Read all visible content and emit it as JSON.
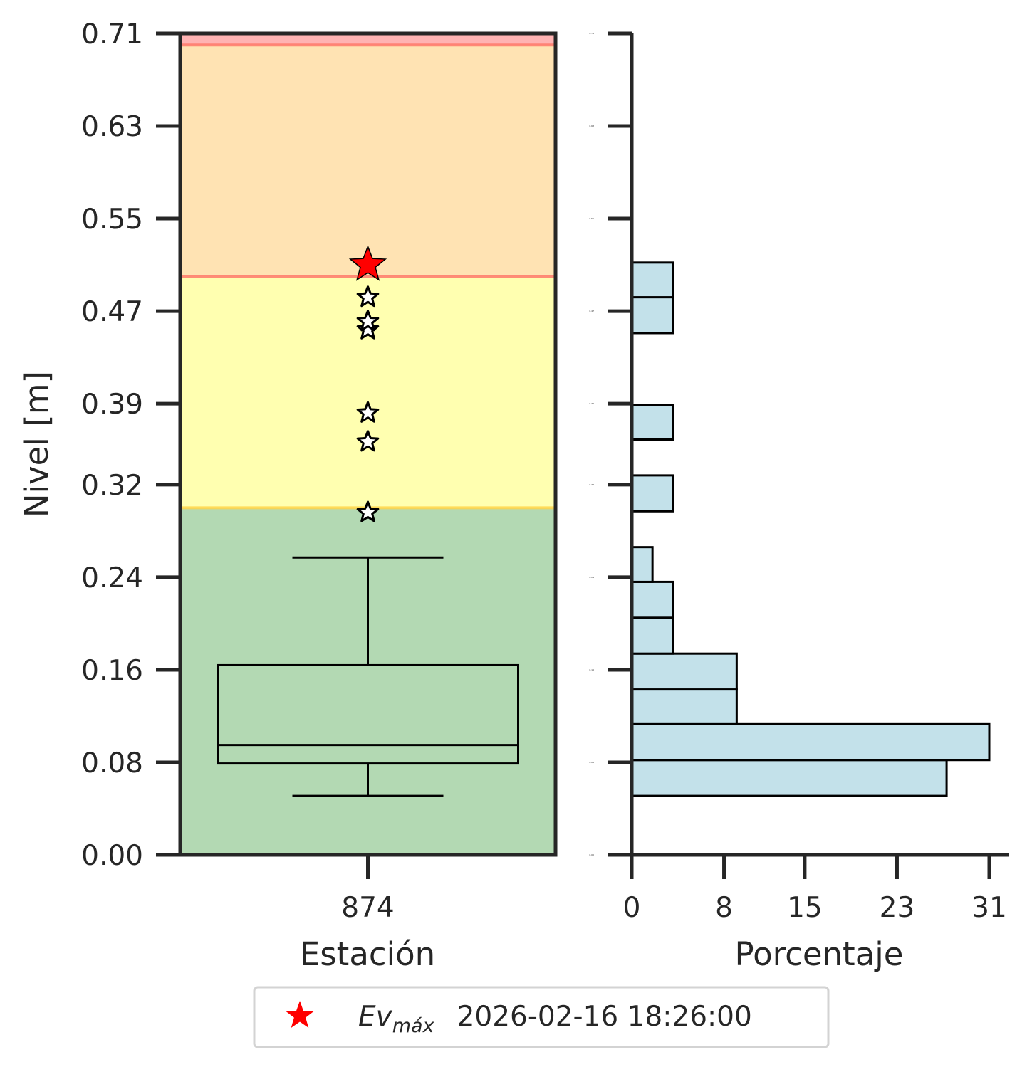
{
  "chart_data": [
    {
      "type": "box",
      "xlabel": "Estación",
      "ylabel": "Nivel [m]",
      "ylim": [
        0,
        0.71
      ],
      "yticks": [
        "0.00",
        "0.08",
        "0.16",
        "0.24",
        "0.32",
        "0.39",
        "0.47",
        "0.55",
        "0.63",
        "0.71"
      ],
      "categories": [
        "874"
      ],
      "box": {
        "whisker_low": 0.051,
        "q1": 0.079,
        "median": 0.095,
        "q3": 0.164,
        "whisker_high": 0.257
      },
      "outliers": [
        0.296,
        0.357,
        0.382,
        0.454,
        0.461,
        0.482
      ],
      "max_event": {
        "value": 0.51,
        "label": "Ev",
        "label_sub": "máx",
        "date": "2026-02-16 18:26:00",
        "color": "#ff0000"
      },
      "bands": [
        {
          "from": 0.0,
          "to": 0.3,
          "color": "#b3d9b3",
          "edge": "#bfe38c"
        },
        {
          "from": 0.3,
          "to": 0.5,
          "color": "#ffffb0",
          "edge": "#ffd54a"
        },
        {
          "from": 0.5,
          "to": 0.7,
          "color": "#ffe3b3",
          "edge": "#ff7a6b"
        },
        {
          "from": 0.7,
          "to": 0.71,
          "color": "#ffb3b3",
          "edge": "#ff7a6b"
        }
      ],
      "grid": false
    },
    {
      "type": "histogram",
      "orientation": "horizontal",
      "xlabel": "Porcentaje",
      "xlim": [
        0,
        32
      ],
      "xticks": [
        "0",
        "8",
        "15",
        "23",
        "31"
      ],
      "bar_color": "#c3e1ea",
      "bins": [
        {
          "from": 0.051,
          "to": 0.082,
          "value": 27.3
        },
        {
          "from": 0.082,
          "to": 0.113,
          "value": 31.0
        },
        {
          "from": 0.113,
          "to": 0.143,
          "value": 9.1
        },
        {
          "from": 0.143,
          "to": 0.174,
          "value": 9.1
        },
        {
          "from": 0.174,
          "to": 0.205,
          "value": 3.6
        },
        {
          "from": 0.205,
          "to": 0.236,
          "value": 3.6
        },
        {
          "from": 0.236,
          "to": 0.266,
          "value": 1.8
        },
        {
          "from": 0.266,
          "to": 0.297,
          "value": 0
        },
        {
          "from": 0.297,
          "to": 0.328,
          "value": 3.6
        },
        {
          "from": 0.328,
          "to": 0.359,
          "value": 0
        },
        {
          "from": 0.359,
          "to": 0.389,
          "value": 3.6
        },
        {
          "from": 0.389,
          "to": 0.42,
          "value": 0
        },
        {
          "from": 0.42,
          "to": 0.451,
          "value": 0
        },
        {
          "from": 0.451,
          "to": 0.482,
          "value": 3.6
        },
        {
          "from": 0.482,
          "to": 0.512,
          "value": 3.6
        }
      ],
      "tiny_yticks": [
        "0.00",
        "0.08",
        "0.16",
        "0.24",
        "0.32",
        "0.39",
        "0.47",
        "0.55",
        "0.63",
        "0.71"
      ]
    }
  ],
  "legend": {
    "placement": "bottom-center"
  }
}
